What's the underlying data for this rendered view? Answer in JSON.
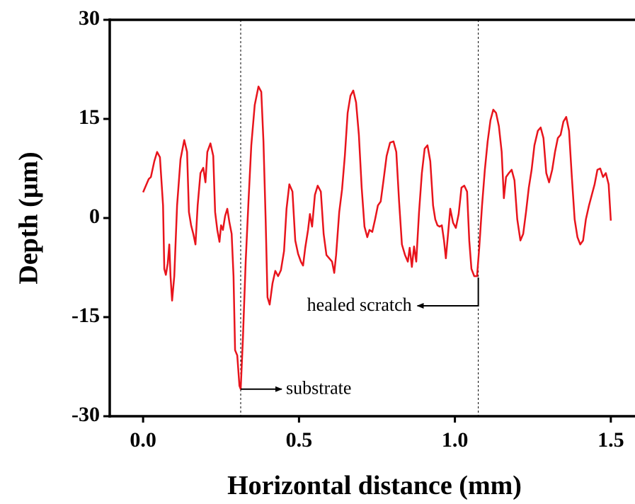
{
  "chart_data": {
    "type": "line",
    "xlabel": "Horizontal distance (mm)",
    "ylabel": "Depth (μm)",
    "xlim": [
      -0.107,
      1.573
    ],
    "ylim": [
      -30,
      30
    ],
    "xticks": [
      {
        "value": 0,
        "label": "0.0"
      },
      0.5,
      {
        "value": 1,
        "label": "1.0"
      },
      1.5
    ],
    "yticks": [
      -30,
      -15,
      0,
      15,
      30
    ],
    "vlines": [
      0.313,
      1.075
    ],
    "annotations": [
      {
        "text": "substrate",
        "x": 0.313,
        "y": -25.9,
        "side": "right"
      },
      {
        "text": "healed scratch",
        "x": 1.075,
        "y": -9,
        "side": "left"
      }
    ],
    "series": [
      {
        "name": "Depth",
        "color": "#e8141c",
        "x": [
          0,
          0.018,
          0.025,
          0.036,
          0.045,
          0.054,
          0.064,
          0.068,
          0.073,
          0.079,
          0.084,
          0.088,
          0.093,
          0.1,
          0.109,
          0.12,
          0.132,
          0.141,
          0.147,
          0.154,
          0.161,
          0.168,
          0.175,
          0.184,
          0.193,
          0.2,
          0.206,
          0.216,
          0.225,
          0.231,
          0.238,
          0.245,
          0.25,
          0.256,
          0.263,
          0.27,
          0.277,
          0.284,
          0.29,
          0.295,
          0.302,
          0.309,
          0.313,
          0.32,
          0.329,
          0.338,
          0.347,
          0.358,
          0.37,
          0.379,
          0.386,
          0.393,
          0.399,
          0.406,
          0.415,
          0.424,
          0.433,
          0.442,
          0.452,
          0.46,
          0.469,
          0.479,
          0.488,
          0.497,
          0.506,
          0.513,
          0.52,
          0.529,
          0.535,
          0.542,
          0.551,
          0.56,
          0.57,
          0.579,
          0.588,
          0.597,
          0.606,
          0.613,
          0.619,
          0.629,
          0.638,
          0.647,
          0.656,
          0.665,
          0.674,
          0.683,
          0.692,
          0.701,
          0.71,
          0.719,
          0.726,
          0.735,
          0.744,
          0.753,
          0.762,
          0.771,
          0.781,
          0.792,
          0.803,
          0.812,
          0.821,
          0.83,
          0.84,
          0.849,
          0.855,
          0.862,
          0.869,
          0.876,
          0.885,
          0.894,
          0.903,
          0.912,
          0.921,
          0.93,
          0.937,
          0.944,
          0.951,
          0.958,
          0.965,
          0.971,
          0.978,
          0.985,
          0.994,
          1.003,
          1.012,
          1.021,
          1.03,
          1.039,
          1.046,
          1.053,
          1.062,
          1.071,
          1.078,
          1.087,
          1.096,
          1.105,
          1.114,
          1.123,
          1.132,
          1.141,
          1.15,
          1.157,
          1.164,
          1.173,
          1.182,
          1.191,
          1.2,
          1.21,
          1.219,
          1.228,
          1.237,
          1.246,
          1.255,
          1.266,
          1.275,
          1.284,
          1.293,
          1.302,
          1.312,
          1.321,
          1.33,
          1.339,
          1.348,
          1.357,
          1.366,
          1.375,
          1.384,
          1.393,
          1.402,
          1.411,
          1.42,
          1.43,
          1.439,
          1.448,
          1.457,
          1.466,
          1.475,
          1.484,
          1.493,
          1.5
        ],
        "values": [
          3.9,
          5.9,
          6.2,
          8.6,
          10,
          9.2,
          1.9,
          -7.7,
          -8.6,
          -6.9,
          -4,
          -8.8,
          -12.5,
          -8.8,
          1.9,
          8.9,
          11.8,
          10,
          0.9,
          -1.1,
          -2.4,
          -4,
          1.9,
          6.8,
          7.6,
          5.4,
          10,
          11.3,
          9.4,
          0.9,
          -1.8,
          -3.6,
          -1.1,
          -1.8,
          0.3,
          1.4,
          -0.7,
          -2.4,
          -8.8,
          -20,
          -20.8,
          -25.4,
          -25.9,
          -18.4,
          -6.6,
          2.5,
          11,
          17.1,
          19.9,
          19.1,
          11.6,
          -0.2,
          -12,
          -13.1,
          -9.9,
          -8,
          -8.8,
          -7.9,
          -5,
          1.4,
          5.1,
          4,
          -3.4,
          -5.4,
          -6.6,
          -7.2,
          -4.5,
          -1.8,
          0.6,
          -1.3,
          3.5,
          4.9,
          4,
          -2.4,
          -5.6,
          -6.1,
          -6.6,
          -8.3,
          -5.6,
          0.9,
          4.3,
          9.4,
          15.9,
          18.5,
          19.3,
          17.5,
          12.6,
          4.6,
          -1.3,
          -2.9,
          -1.8,
          -2.1,
          -0.2,
          1.9,
          2.5,
          5.7,
          9.4,
          11.4,
          11.6,
          10,
          2.5,
          -4,
          -5.6,
          -6.6,
          -4.5,
          -7.4,
          -4.3,
          -6.6,
          0.9,
          6.8,
          10.5,
          11,
          8.6,
          1.9,
          -0.2,
          -1.1,
          -1.3,
          -1.1,
          -3.4,
          -6.1,
          -2.4,
          1.4,
          -0.7,
          -1.5,
          0.6,
          4.6,
          4.9,
          4,
          -3.4,
          -7.7,
          -8.8,
          -8.8,
          -4.5,
          1.9,
          7.3,
          11.6,
          14.8,
          16.4,
          15.9,
          13.9,
          10,
          3,
          6.2,
          6.8,
          7.3,
          5.7,
          -0.2,
          -3.4,
          -2.4,
          0.9,
          4.6,
          7.3,
          11,
          13.2,
          13.7,
          12.1,
          6.8,
          5.4,
          7.3,
          10,
          12.1,
          12.6,
          14.6,
          15.3,
          13.2,
          6.2,
          -0.2,
          -2.9,
          -4,
          -3.4,
          -0.2,
          1.9,
          3.5,
          5.1,
          7.3,
          7.5,
          6.2,
          6.8,
          5.1,
          -0.4
        ]
      }
    ]
  }
}
